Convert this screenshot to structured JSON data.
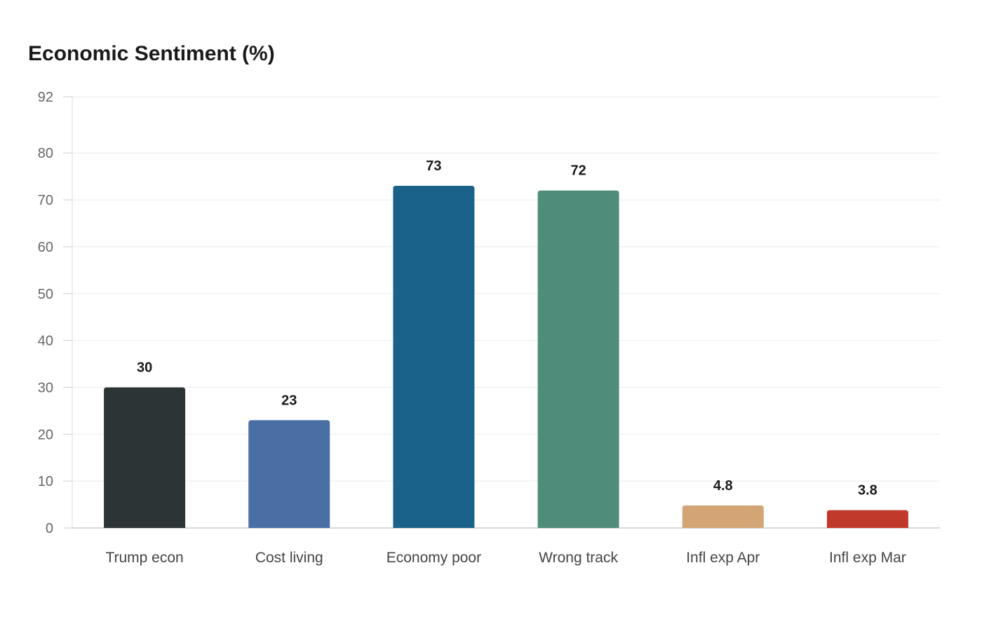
{
  "chart_data": {
    "type": "bar",
    "title": "Economic Sentiment (%)",
    "xlabel": "",
    "ylabel": "",
    "categories": [
      "Trump econ",
      "Cost living",
      "Economy poor",
      "Wrong track",
      "Infl exp Apr",
      "Infl exp Mar"
    ],
    "values": [
      30,
      23,
      73,
      72,
      4.8,
      3.8
    ],
    "value_labels": [
      "30",
      "23",
      "73",
      "72",
      "4.8",
      "3.8"
    ],
    "colors": [
      "#2d3436",
      "#4a6fa5",
      "#1a6289",
      "#4f8c7a",
      "#d3a574",
      "#c0392b"
    ],
    "ylim": [
      0,
      92
    ],
    "yticks": [
      0,
      10,
      20,
      30,
      40,
      50,
      60,
      70,
      80,
      92
    ],
    "grid": true,
    "legend": "none"
  }
}
